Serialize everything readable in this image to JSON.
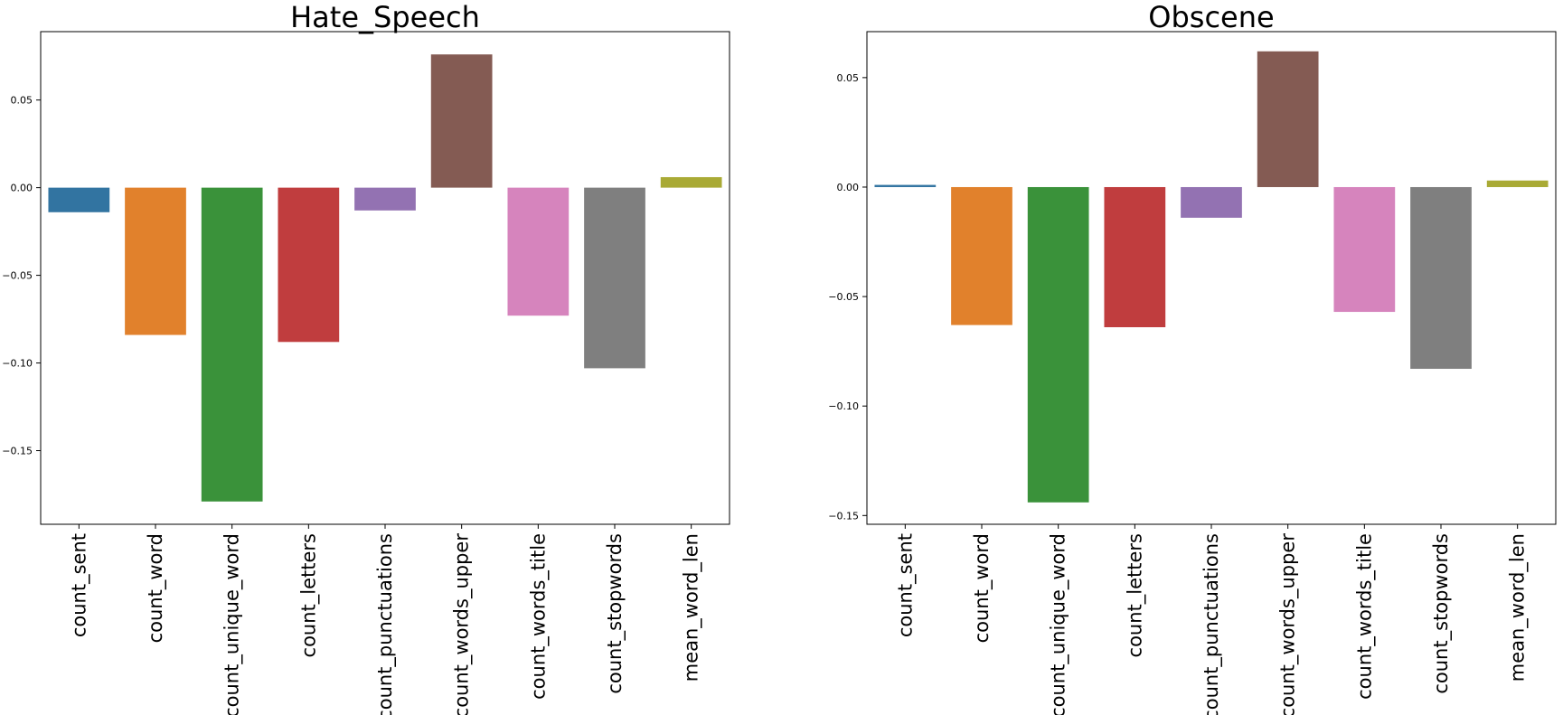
{
  "chart_data": [
    {
      "type": "bar",
      "title": "Hate_Speech",
      "xlabel": "",
      "ylabel": "",
      "categories": [
        "count_sent",
        "count_word",
        "count_unique_word",
        "count_letters",
        "count_punctuations",
        "count_words_upper",
        "count_words_title",
        "count_stopwords",
        "mean_word_len"
      ],
      "values": [
        -0.014,
        -0.084,
        -0.179,
        -0.088,
        -0.013,
        0.076,
        -0.073,
        -0.103,
        0.006
      ],
      "colors": [
        "#3274a1",
        "#e1812c",
        "#3a923a",
        "#c03d3e",
        "#9372b2",
        "#845b53",
        "#d684bd",
        "#7f7f7f",
        "#a9aa35"
      ],
      "ylim": [
        -0.192,
        0.089
      ],
      "yticks": [
        -0.15,
        -0.1,
        -0.05,
        0.0,
        0.05
      ],
      "ytick_labels": [
        "−0.15",
        "−0.10",
        "−0.05",
        "0.00",
        "0.05"
      ],
      "grid": false,
      "legend": "none"
    },
    {
      "type": "bar",
      "title": "Obscene",
      "xlabel": "",
      "ylabel": "",
      "categories": [
        "count_sent",
        "count_word",
        "count_unique_word",
        "count_letters",
        "count_punctuations",
        "count_words_upper",
        "count_words_title",
        "count_stopwords",
        "mean_word_len"
      ],
      "values": [
        0.001,
        -0.063,
        -0.144,
        -0.064,
        -0.014,
        0.062,
        -0.057,
        -0.083,
        0.003
      ],
      "colors": [
        "#3274a1",
        "#e1812c",
        "#3a923a",
        "#c03d3e",
        "#9372b2",
        "#845b53",
        "#d684bd",
        "#7f7f7f",
        "#a9aa35"
      ],
      "ylim": [
        -0.154,
        0.071
      ],
      "yticks": [
        -0.15,
        -0.1,
        -0.05,
        0.0,
        0.05
      ],
      "ytick_labels": [
        "−0.15",
        "−0.10",
        "−0.05",
        "0.00",
        "0.05"
      ],
      "grid": false,
      "legend": "none"
    }
  ]
}
